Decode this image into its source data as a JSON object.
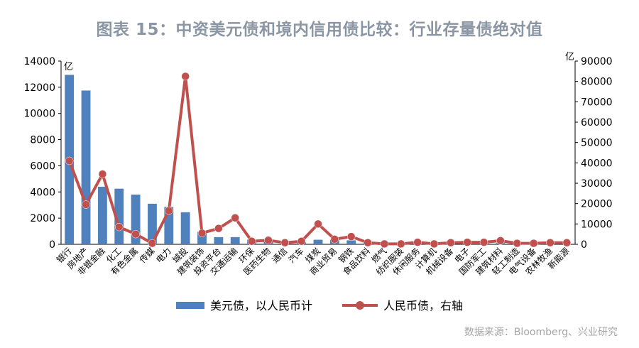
{
  "title": "图表 15：中资美元债和境内信用债比较：行业存量债绝对值",
  "source": "数据来源：Bloomberg、兴业研究",
  "colors": {
    "bar": "#4f81bd",
    "line": "#c0504d",
    "title": "#8a96a3"
  },
  "chart_data": {
    "type": "bar+line",
    "categories": [
      "银行",
      "房地产",
      "非银金融",
      "化工",
      "有色金属",
      "传媒",
      "电力",
      "城投",
      "建筑装饰",
      "投资平台",
      "交通运输",
      "环保",
      "医药生物",
      "通信",
      "汽车",
      "煤炭",
      "商业贸易",
      "钢铁",
      "食品饮料",
      "燃气",
      "纺织服装",
      "休闲服务",
      "计算机",
      "机械设备",
      "电子",
      "国防军工",
      "建筑材料",
      "轻工制造",
      "电气设备",
      "农林牧渔",
      "新能源"
    ],
    "left_unit": "亿",
    "right_unit": "亿",
    "left_ticks": [
      "0",
      "2000",
      "4000",
      "6000",
      "8000",
      "10000",
      "12000",
      "14000"
    ],
    "right_ticks": [
      "0",
      "10000",
      "20000",
      "30000",
      "40000",
      "50000",
      "60000",
      "70000",
      "80000",
      "90000"
    ],
    "ylim_left": [
      0,
      14000
    ],
    "ylim_right": [
      0,
      90000
    ],
    "series": [
      {
        "name": "美元债，以人民币计",
        "type": "bar",
        "axis": "left",
        "values": [
          12950,
          11750,
          4400,
          4250,
          3800,
          3100,
          2850,
          2450,
          950,
          550,
          550,
          350,
          250,
          200,
          150,
          350,
          350,
          300,
          150,
          100,
          100,
          80,
          80,
          100,
          80,
          80,
          100,
          80,
          60,
          60,
          50
        ]
      },
      {
        "name": "人民币债，右轴",
        "type": "line",
        "axis": "right",
        "values": [
          41000,
          19500,
          34500,
          8500,
          5000,
          500,
          16500,
          82500,
          5500,
          7800,
          13000,
          1500,
          2000,
          800,
          1500,
          10000,
          2500,
          3800,
          800,
          200,
          200,
          1000,
          200,
          800,
          1000,
          1000,
          1800,
          500,
          500,
          800,
          800
        ]
      }
    ],
    "legend_position": "bottom",
    "grid": false
  }
}
